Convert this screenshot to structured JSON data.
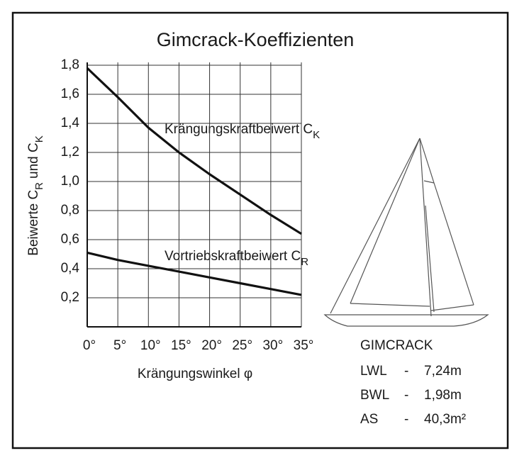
{
  "chart_data": {
    "type": "line",
    "title": "Gimcrack-Koeffizienten",
    "ylabel": [
      "Beiwerte C",
      "R",
      "und C",
      "K"
    ],
    "xlabel": "Krängungswinkel φ",
    "x": [
      0,
      5,
      10,
      15,
      20,
      25,
      30,
      35
    ],
    "series": [
      {
        "name": "Krängungskraftbeiwert C",
        "subscript": "K",
        "color": "#111111",
        "values": [
          1.78,
          1.58,
          1.37,
          1.2,
          1.05,
          0.91,
          0.77,
          0.64
        ]
      },
      {
        "name": "Vortriebskraftbeiwert C",
        "subscript": "R",
        "color": "#111111",
        "values": [
          0.51,
          0.46,
          0.42,
          0.38,
          0.34,
          0.3,
          0.26,
          0.22
        ]
      }
    ],
    "xlim": [
      0,
      35
    ],
    "xticks": [
      {
        "value": 0,
        "label": "0°"
      },
      {
        "value": 5,
        "label": "5°"
      },
      {
        "value": 10,
        "label": "10°"
      },
      {
        "value": 15,
        "label": "15°"
      },
      {
        "value": 20,
        "label": "20°"
      },
      {
        "value": 25,
        "label": "25°"
      },
      {
        "value": 30,
        "label": "30°"
      },
      {
        "value": 35,
        "label": "35°"
      }
    ],
    "ylim": [
      0,
      1.8
    ],
    "yticks": [
      {
        "value": 0.2,
        "label": "0,2"
      },
      {
        "value": 0.4,
        "label": "0,4"
      },
      {
        "value": 0.6,
        "label": "0,6"
      },
      {
        "value": 0.8,
        "label": "0,8"
      },
      {
        "value": 1.0,
        "label": "1,0"
      },
      {
        "value": 1.2,
        "label": "1,2"
      },
      {
        "value": 1.4,
        "label": "1,4"
      },
      {
        "value": 1.6,
        "label": "1,6"
      },
      {
        "value": 1.8,
        "label": "1,8"
      }
    ],
    "grid": true
  },
  "boat": {
    "name": "GIMCRACK",
    "specs": [
      [
        "LWL",
        "-",
        "7,24m"
      ],
      [
        "BWL",
        "-",
        "1,98m"
      ],
      [
        "AS",
        "-",
        "40,3m²"
      ]
    ]
  }
}
